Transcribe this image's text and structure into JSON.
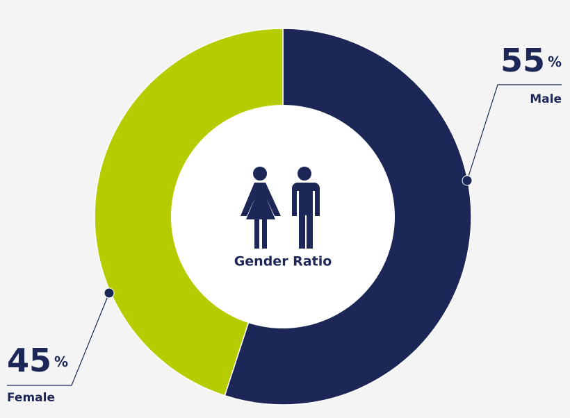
{
  "chart_data": {
    "type": "donut",
    "title": "Gender Ratio",
    "categories": [
      "Male",
      "Female"
    ],
    "values": [
      55,
      45
    ],
    "value_labels": [
      "55%",
      "45%"
    ],
    "colors": [
      "#1c2757",
      "#b5cc00"
    ]
  }
}
